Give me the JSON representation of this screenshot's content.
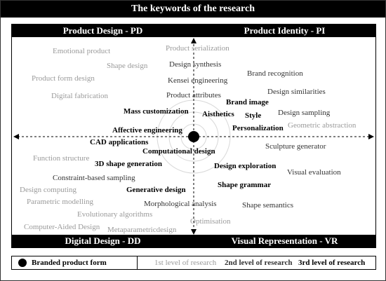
{
  "title": "The keywords of the research",
  "quadrants": {
    "tl": "Product Design - PD",
    "tr": "Product Identity - PI",
    "bl": "Digital Design - DD",
    "br": "Visual Representation - VR"
  },
  "keywords": [
    {
      "text": "Emotional product",
      "level": 1
    },
    {
      "text": "Shape design",
      "level": 1
    },
    {
      "text": "Product form design",
      "level": 1
    },
    {
      "text": "Digital fabrication",
      "level": 1
    },
    {
      "text": "Product  serialization",
      "level": 1
    },
    {
      "text": "Design  synthesis",
      "level": 2
    },
    {
      "text": "Kensei  engineering",
      "level": 2
    },
    {
      "text": "Product  attributes",
      "level": 2
    },
    {
      "text": "Brand recognition",
      "level": 2
    },
    {
      "text": "Design similarities",
      "level": 2
    },
    {
      "text": "Brand image",
      "level": 3
    },
    {
      "text": "Mass customization",
      "level": 3
    },
    {
      "text": "Aisthetics",
      "level": 3
    },
    {
      "text": "Style",
      "level": 3
    },
    {
      "text": "Design sampling",
      "level": 2
    },
    {
      "text": "Personalization",
      "level": 3
    },
    {
      "text": "Geometric abstraction",
      "level": 1
    },
    {
      "text": "Affective engineering",
      "level": 3
    },
    {
      "text": "CAD applications",
      "level": 3
    },
    {
      "text": "Sculpture generator",
      "level": 2
    },
    {
      "text": "Computational  design",
      "level": 3
    },
    {
      "text": "Function structure",
      "level": 1
    },
    {
      "text": "3D shape generation",
      "level": 3
    },
    {
      "text": "Design exploration",
      "level": 3
    },
    {
      "text": "Visual evaluation",
      "level": 2
    },
    {
      "text": "Constraint-based sampling",
      "level": 2
    },
    {
      "text": "Shape grammar",
      "level": 3
    },
    {
      "text": "Design computing",
      "level": 1
    },
    {
      "text": "Generative design",
      "level": 3
    },
    {
      "text": "Parametric modelling",
      "level": 1
    },
    {
      "text": "Morphological  analysis",
      "level": 2
    },
    {
      "text": "Shape semantics",
      "level": 2
    },
    {
      "text": "Evolutionary algorithms",
      "level": 1
    },
    {
      "text": "Computer-Aided Design",
      "level": 1
    },
    {
      "text": "Optimisation",
      "level": 1
    },
    {
      "text": "Metaparametricdesign",
      "level": 1
    }
  ],
  "legend": {
    "branded": "Branded product form",
    "level1": "1st level of research",
    "level2": "2nd level of research",
    "level3": "3rd level of research"
  }
}
